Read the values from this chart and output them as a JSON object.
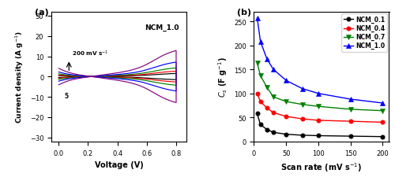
{
  "panel_a": {
    "title": "NCM_1.0",
    "xlabel": "Voltage (V)",
    "ylabel": "Current density (A g$^{-1}$)",
    "xlim": [
      -0.05,
      0.87
    ],
    "ylim": [
      -32,
      32
    ],
    "yticks": [
      -30,
      -20,
      -10,
      0,
      10,
      20,
      30
    ],
    "xticks": [
      0.0,
      0.2,
      0.4,
      0.6,
      0.8
    ],
    "annotation": "200 mV s$^{-1}$",
    "annotation_5": "5",
    "cv_colors": [
      "black",
      "red",
      "green",
      "blue",
      "purple"
    ],
    "cv_scales": [
      1.6,
      2.8,
      4.5,
      7.5,
      13.5
    ]
  },
  "panel_b": {
    "xlabel": "Scan rate (mV s$^{-1}$)",
    "ylabel": "$C_s$ (F g$^{-1}$)",
    "xlim": [
      0,
      210
    ],
    "ylim": [
      0,
      270
    ],
    "yticks": [
      0,
      50,
      100,
      150,
      200,
      250
    ],
    "xticks": [
      0,
      50,
      100,
      150,
      200
    ],
    "scan_rates": [
      5,
      10,
      20,
      30,
      50,
      75,
      100,
      150,
      200
    ],
    "ncm_01": [
      58,
      35,
      25,
      19,
      15,
      13,
      12,
      11,
      10
    ],
    "ncm_04": [
      100,
      83,
      70,
      60,
      52,
      47,
      44,
      42,
      40
    ],
    "ncm_07": [
      163,
      137,
      113,
      93,
      83,
      77,
      73,
      67,
      64
    ],
    "ncm_10": [
      257,
      208,
      172,
      150,
      127,
      110,
      100,
      88,
      80
    ],
    "colors": [
      "black",
      "red",
      "green",
      "blue"
    ],
    "labels": [
      "NCM_0.1",
      "NCM_0.4",
      "NCM_0.7",
      "NCM_1.0"
    ],
    "markers": [
      "o",
      "o",
      "v",
      "^"
    ]
  }
}
